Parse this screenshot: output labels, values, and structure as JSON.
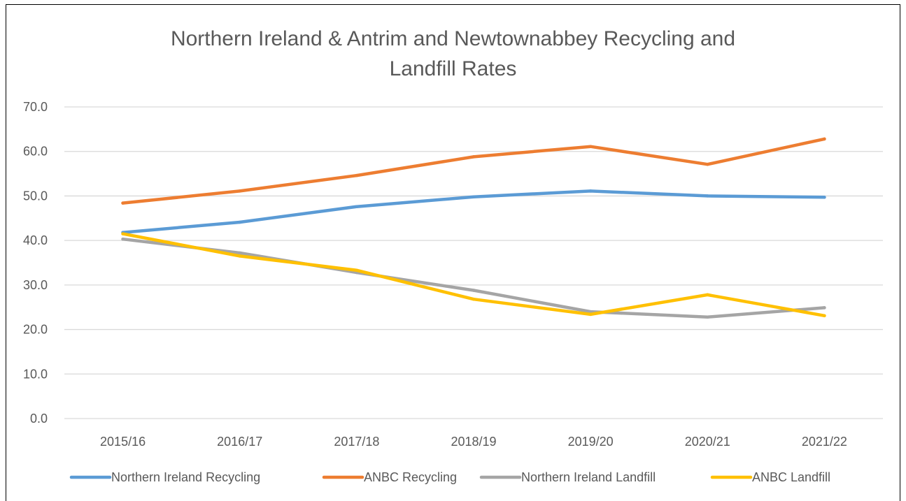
{
  "title_line1": "Northern Ireland & Antrim and Newtownabbey Recycling and",
  "title_line2": "Landfill Rates",
  "chart_data": {
    "type": "line",
    "title": "Northern Ireland & Antrim and Newtownabbey Recycling and Landfill Rates",
    "categories": [
      "2015/16",
      "2016/17",
      "2017/18",
      "2018/19",
      "2019/20",
      "2020/21",
      "2021/22"
    ],
    "ylim": [
      0,
      70
    ],
    "yticks": [
      "0.0",
      "10.0",
      "20.0",
      "30.0",
      "40.0",
      "50.0",
      "60.0",
      "70.0"
    ],
    "grid": true,
    "legend_position": "bottom",
    "series": [
      {
        "name": "Northern Ireland Recycling",
        "color": "#5B9BD5",
        "values": [
          41.8,
          44.1,
          47.6,
          49.8,
          51.1,
          50.0,
          49.7
        ]
      },
      {
        "name": "ANBC Recycling",
        "color": "#ED7D31",
        "values": [
          48.4,
          51.1,
          54.6,
          58.8,
          61.1,
          57.1,
          62.8
        ]
      },
      {
        "name": "Northern Ireland Landfill",
        "color": "#A5A5A5",
        "values": [
          40.3,
          37.2,
          32.8,
          28.8,
          24.0,
          22.8,
          24.9
        ]
      },
      {
        "name": "ANBC Landfill",
        "color": "#FFC000",
        "values": [
          41.5,
          36.5,
          33.3,
          26.8,
          23.4,
          27.8,
          23.1
        ]
      }
    ]
  }
}
